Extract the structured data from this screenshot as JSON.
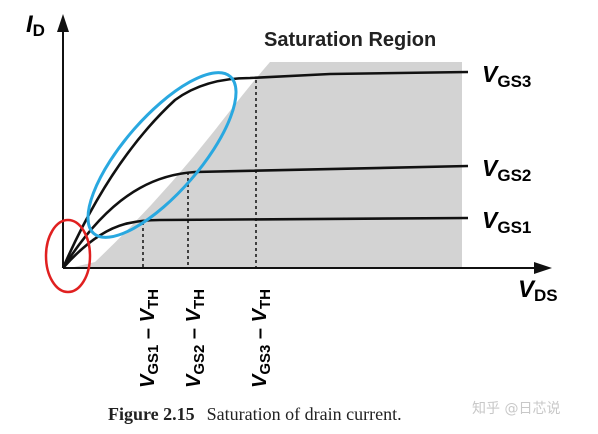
{
  "axes": {
    "y_label_main": "I",
    "y_label_sub": "D",
    "x_label_main": "V",
    "x_label_sub": "DS"
  },
  "region_label": "Saturation Region",
  "curves": [
    {
      "main": "V",
      "sub": "GS3"
    },
    {
      "main": "V",
      "sub": "GS2"
    },
    {
      "main": "V",
      "sub": "GS1"
    }
  ],
  "tick_labels": [
    {
      "main": "V",
      "sub": "GS1",
      "mid": " – ",
      "main2": "V",
      "sub2": "TH"
    },
    {
      "main": "V",
      "sub": "GS2",
      "mid": " – ",
      "main2": "V",
      "sub2": "TH"
    },
    {
      "main": "V",
      "sub": "GS3",
      "mid": " – ",
      "main2": "V",
      "sub2": "TH"
    }
  ],
  "caption": {
    "number": "Figure 2.15",
    "text": "Saturation of drain current."
  },
  "watermark": "知乎 @日芯说",
  "colors": {
    "saturation_fill": "#d3d3d3",
    "curve": "#111111",
    "highlight_ellipse_blue": "#29a8e0",
    "highlight_ellipse_red": "#e02020"
  }
}
